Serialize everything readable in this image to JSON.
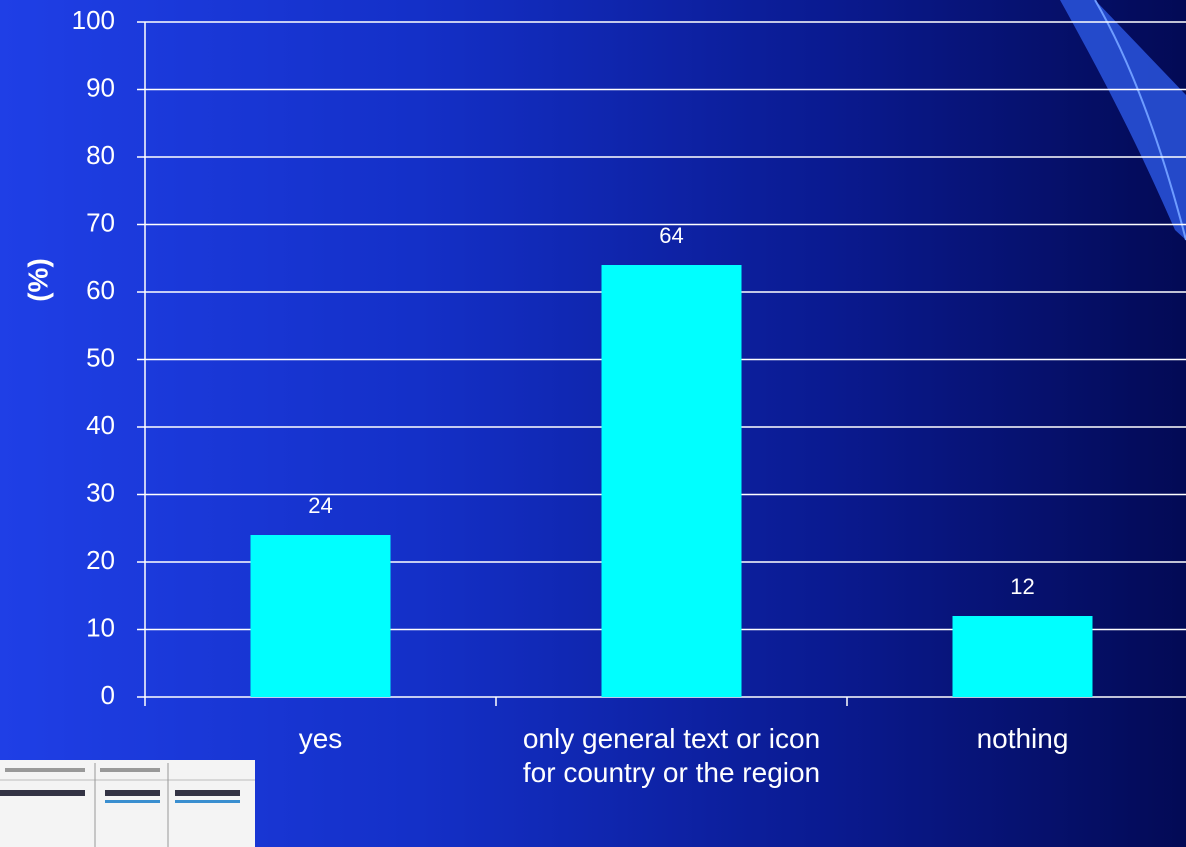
{
  "chart_data": {
    "type": "bar",
    "y_label": "(%)",
    "categories": [
      "yes",
      "only general text or icon for country or the region",
      "nothing"
    ],
    "values": [
      24,
      64,
      12
    ],
    "color": "#00ffff",
    "ylim": [
      0,
      100
    ],
    "yticks": [
      0,
      10,
      20,
      30,
      40,
      50,
      60,
      70,
      80,
      90,
      100
    ],
    "grid": true
  }
}
